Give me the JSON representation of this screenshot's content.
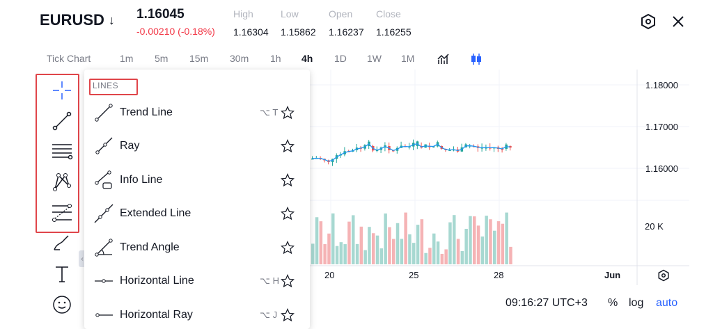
{
  "header": {
    "symbol": "EURUSD",
    "direction_arrow": "↓",
    "price": "1.16045",
    "change": "-0.00210 (-0.18%)",
    "stats": [
      {
        "label": "High",
        "value": "1.16304"
      },
      {
        "label": "Low",
        "value": "1.15862"
      },
      {
        "label": "Open",
        "value": "1.16237"
      },
      {
        "label": "Close",
        "value": "1.16255"
      }
    ],
    "settings_icon": "hexagon-settings-icon",
    "close_icon": "close-icon"
  },
  "timeframes": {
    "tick_chart": "Tick Chart",
    "items": [
      "1m",
      "5m",
      "15m",
      "30m",
      "1h",
      "4h",
      "1D",
      "1W",
      "1M"
    ],
    "active": "4h",
    "indicators_icon": "indicators-icon",
    "chart_type_icon": "candlestick-icon"
  },
  "left_toolbar": {
    "tools": [
      "crosshair-icon",
      "trend-line-icon",
      "horizontal-lines-icon",
      "pattern-icon",
      "fib-icon",
      "brush-icon",
      "text-icon",
      "emoji-icon"
    ]
  },
  "dropdown": {
    "section": "LINES",
    "items": [
      {
        "label": "Trend Line",
        "hotkey": "⌥ T",
        "icon": "trend-line-icon"
      },
      {
        "label": "Ray",
        "hotkey": "",
        "icon": "ray-icon"
      },
      {
        "label": "Info Line",
        "hotkey": "",
        "icon": "info-line-icon"
      },
      {
        "label": "Extended Line",
        "hotkey": "",
        "icon": "extended-line-icon"
      },
      {
        "label": "Trend Angle",
        "hotkey": "",
        "icon": "trend-angle-icon"
      },
      {
        "label": "Horizontal Line",
        "hotkey": "⌥ H",
        "icon": "horizontal-line-icon"
      },
      {
        "label": "Horizontal Ray",
        "hotkey": "⌥ J",
        "icon": "horizontal-ray-icon"
      }
    ]
  },
  "chart": {
    "price_labels": [
      "1.18000",
      "1.17000",
      "1.16000"
    ],
    "volume_label": "20 K",
    "date_labels": [
      "20",
      "25",
      "28",
      "Jun"
    ],
    "up_color": "#26a69a",
    "down_color": "#ef5350",
    "ma_color": "#2196f3"
  },
  "footer": {
    "time": "09:16:27 UTC+3",
    "percent": "%",
    "log": "log",
    "auto": "auto"
  }
}
